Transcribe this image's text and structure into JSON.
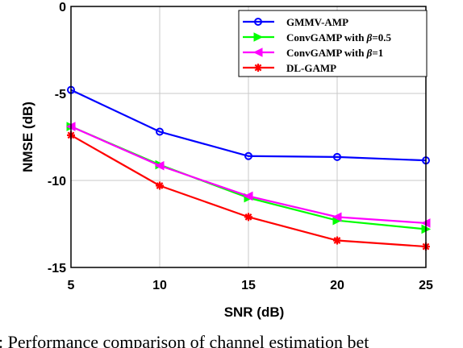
{
  "chart_data": {
    "type": "line",
    "xlabel": "SNR (dB)",
    "ylabel": "NMSE (dB)",
    "xlim": [
      5,
      25
    ],
    "ylim": [
      -15,
      0
    ],
    "x_ticks": [
      "5",
      "10",
      "15",
      "20",
      "25"
    ],
    "y_ticks": [
      "0",
      "-5",
      "-10",
      "-15"
    ],
    "x": [
      5,
      10,
      15,
      20,
      25
    ],
    "grid": true,
    "legend_position": "top-right",
    "series": [
      {
        "name": "GMMV-AMP",
        "values": [
          -4.8,
          -7.2,
          -8.6,
          -8.65,
          -8.85
        ],
        "color": "#0000ff",
        "marker": "circle"
      },
      {
        "name_prefix": "ConvGAMP with ",
        "name_symbol": "β",
        "name_suffix": "=0.5",
        "values": [
          -6.9,
          -9.1,
          -11.0,
          -12.3,
          -12.8
        ],
        "color": "#00ff00",
        "marker": "triangle-right"
      },
      {
        "name_prefix": "ConvGAMP with ",
        "name_symbol": "β",
        "name_suffix": "=1",
        "values": [
          -6.9,
          -9.15,
          -10.9,
          -12.1,
          -12.45
        ],
        "color": "#ff00ff",
        "marker": "triangle-left"
      },
      {
        "name": "DL-GAMP",
        "values": [
          -7.4,
          -10.3,
          -12.1,
          -13.45,
          -13.8
        ],
        "color": "#ff0000",
        "marker": "asterisk"
      }
    ]
  },
  "caption": ": Performance comparison of channel estimation bet"
}
